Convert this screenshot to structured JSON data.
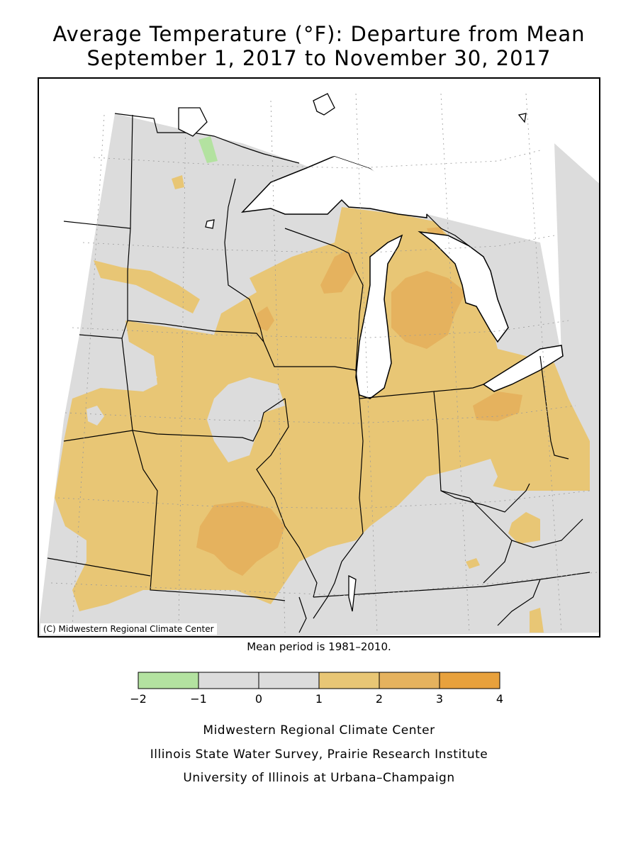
{
  "title_line1": "Average Temperature (°F): Departure from Mean",
  "title_line2": "September 1, 2017 to November 30, 2017",
  "map_credit": "(C) Midwestern Regional Climate Center",
  "mean_note": "Mean period is 1981–2010.",
  "legend": {
    "bins": [
      {
        "from": -2,
        "to": -1,
        "color": "#b3e2a0"
      },
      {
        "from": -1,
        "to": 0,
        "color": "#dcdcdc"
      },
      {
        "from": 0,
        "to": 1,
        "color": "#dcdcdc"
      },
      {
        "from": 1,
        "to": 2,
        "color": "#e8c675"
      },
      {
        "from": 2,
        "to": 3,
        "color": "#e5b25e"
      },
      {
        "from": 3,
        "to": 4,
        "color": "#e8a13c"
      }
    ],
    "tick_labels": [
      "−2",
      "−1",
      "0",
      "1",
      "2",
      "3",
      "4"
    ]
  },
  "colors": {
    "background_gray": "#dcdcdc",
    "warm_1_2": "#e8c675",
    "warm_2_3": "#e5b25e",
    "cool_neg": "#b3e2a0",
    "water": "#ffffff",
    "borders": "#000000"
  },
  "footer": {
    "line1": "Midwestern Regional Climate Center",
    "line2": "Illinois State Water Survey, Prairie Research Institute",
    "line3": "University of Illinois at Urbana–Champaign"
  }
}
